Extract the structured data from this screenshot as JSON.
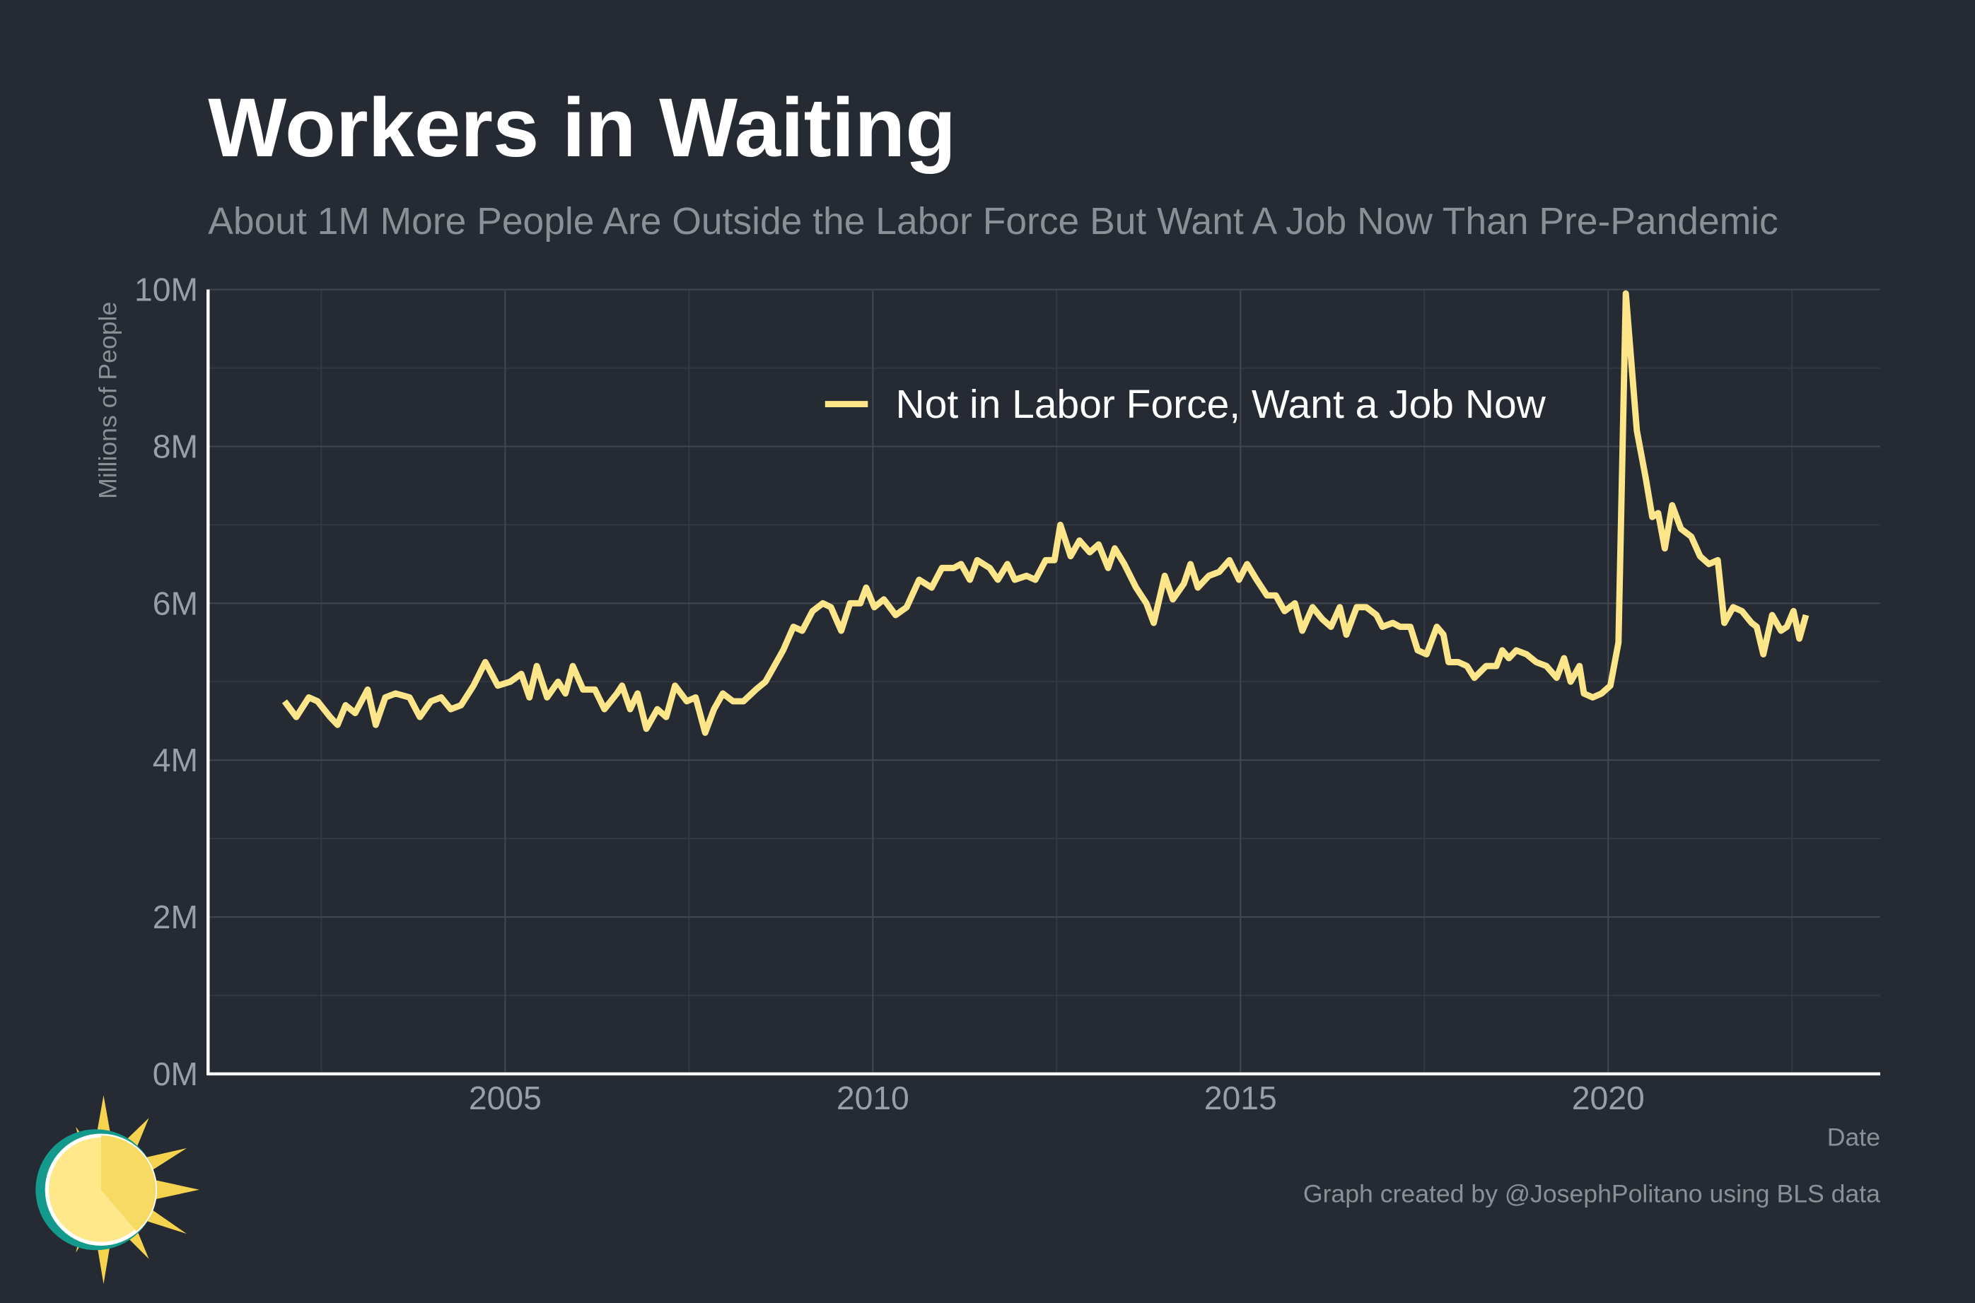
{
  "chart_data": {
    "type": "line",
    "title": "Workers in Waiting",
    "subtitle": "About 1M More People Are Outside the Labor Force But Want A Job Now Than Pre-Pandemic",
    "y_label": "Millions of People",
    "x_label": "Date",
    "credit": "Graph created by @JosephPolitano using BLS data",
    "xlim": [
      2000.96,
      2023.7
    ],
    "xticks": [
      2005,
      2010,
      2015,
      2020
    ],
    "ylim": [
      0,
      10
    ],
    "yticks": [
      {
        "value": 0,
        "label": "0M"
      },
      {
        "value": 2,
        "label": "2M"
      },
      {
        "value": 4,
        "label": "4M"
      },
      {
        "value": 6,
        "label": "6M"
      },
      {
        "value": 8,
        "label": "8M"
      },
      {
        "value": 10,
        "label": "10M"
      }
    ],
    "grid": true,
    "x": [
      2002.0,
      2002.16,
      2002.33,
      2002.45,
      2002.62,
      2002.72,
      2002.83,
      2002.96,
      2003.13,
      2003.24,
      2003.37,
      2003.51,
      2003.7,
      2003.84,
      2003.99,
      2004.13,
      2004.26,
      2004.4,
      2004.57,
      2004.73,
      2004.9,
      2005.07,
      2005.22,
      2005.33,
      2005.43,
      2005.57,
      2005.72,
      2005.82,
      2005.92,
      2006.06,
      2006.22,
      2006.35,
      2006.52,
      2006.59,
      2006.7,
      2006.8,
      2006.92,
      2007.07,
      2007.19,
      2007.31,
      2007.47,
      2007.59,
      2007.72,
      2007.84,
      2007.96,
      2008.1,
      2008.24,
      2008.41,
      2008.54,
      2008.66,
      2008.78,
      2008.92,
      2009.04,
      2009.18,
      2009.32,
      2009.43,
      2009.57,
      2009.69,
      2009.83,
      2009.91,
      2010.02,
      2010.15,
      2010.31,
      2010.46,
      2010.63,
      2010.8,
      2010.94,
      2011.1,
      2011.2,
      2011.32,
      2011.42,
      2011.59,
      2011.7,
      2011.83,
      2011.93,
      2012.09,
      2012.21,
      2012.35,
      2012.47,
      2012.55,
      2012.69,
      2012.81,
      2012.95,
      2013.07,
      2013.2,
      2013.29,
      2013.42,
      2013.58,
      2013.72,
      2013.82,
      2013.97,
      2014.08,
      2014.23,
      2014.32,
      2014.42,
      2014.57,
      2014.71,
      2014.85,
      2014.98,
      2015.09,
      2015.22,
      2015.36,
      2015.48,
      2015.6,
      2015.74,
      2015.84,
      2015.98,
      2016.11,
      2016.23,
      2016.35,
      2016.44,
      2016.58,
      2016.71,
      2016.85,
      2016.93,
      2017.07,
      2017.17,
      2017.31,
      2017.41,
      2017.53,
      2017.67,
      2017.76,
      2017.83,
      2017.96,
      2018.08,
      2018.18,
      2018.34,
      2018.48,
      2018.56,
      2018.65,
      2018.75,
      2018.89,
      2019.02,
      2019.16,
      2019.3,
      2019.4,
      2019.49,
      2019.61,
      2019.67,
      2019.79,
      2019.91,
      2020.03,
      2020.14,
      2020.24,
      2020.39,
      2020.51,
      2020.6,
      2020.68,
      2020.77,
      2020.87,
      2020.99,
      2021.13,
      2021.25,
      2021.37,
      2021.49,
      2021.58,
      2021.7,
      2021.82,
      2021.95,
      2022.02,
      2022.11,
      2022.23,
      2022.35,
      2022.43,
      2022.52,
      2022.6,
      2022.69
    ],
    "series": [
      {
        "name": "Not in Labor Force, Want a Job Now",
        "color": "#fde58a",
        "values": [
          4.75,
          4.55,
          4.8,
          4.75,
          4.55,
          4.45,
          4.7,
          4.6,
          4.9,
          4.45,
          4.8,
          4.85,
          4.8,
          4.55,
          4.75,
          4.8,
          4.65,
          4.7,
          4.95,
          5.25,
          4.95,
          5.0,
          5.1,
          4.8,
          5.2,
          4.8,
          5.0,
          4.85,
          5.2,
          4.9,
          4.9,
          4.65,
          4.85,
          4.95,
          4.65,
          4.85,
          4.4,
          4.65,
          4.55,
          4.95,
          4.75,
          4.8,
          4.35,
          4.65,
          4.85,
          4.75,
          4.75,
          4.9,
          5.0,
          5.2,
          5.4,
          5.7,
          5.65,
          5.9,
          6.0,
          5.95,
          5.65,
          6.0,
          6.0,
          6.2,
          5.95,
          6.05,
          5.85,
          5.95,
          6.3,
          6.2,
          6.45,
          6.45,
          6.5,
          6.3,
          6.55,
          6.45,
          6.3,
          6.5,
          6.3,
          6.35,
          6.3,
          6.55,
          6.55,
          7.0,
          6.6,
          6.8,
          6.65,
          6.75,
          6.45,
          6.7,
          6.5,
          6.2,
          6.0,
          5.75,
          6.35,
          6.05,
          6.25,
          6.5,
          6.2,
          6.35,
          6.4,
          6.55,
          6.3,
          6.5,
          6.3,
          6.1,
          6.1,
          5.9,
          6.0,
          5.65,
          5.95,
          5.8,
          5.7,
          5.95,
          5.6,
          5.95,
          5.95,
          5.85,
          5.7,
          5.75,
          5.7,
          5.7,
          5.4,
          5.35,
          5.7,
          5.6,
          5.25,
          5.25,
          5.2,
          5.05,
          5.2,
          5.2,
          5.4,
          5.3,
          5.4,
          5.35,
          5.25,
          5.2,
          5.05,
          5.3,
          5.0,
          5.2,
          4.85,
          4.8,
          4.85,
          4.95,
          5.5,
          9.95,
          8.2,
          7.6,
          7.1,
          7.15,
          6.7,
          7.25,
          6.95,
          6.85,
          6.6,
          6.5,
          6.55,
          5.75,
          5.95,
          5.9,
          5.75,
          5.7,
          5.35,
          5.85,
          5.65,
          5.7,
          5.9,
          5.55,
          5.85
        ]
      }
    ]
  }
}
